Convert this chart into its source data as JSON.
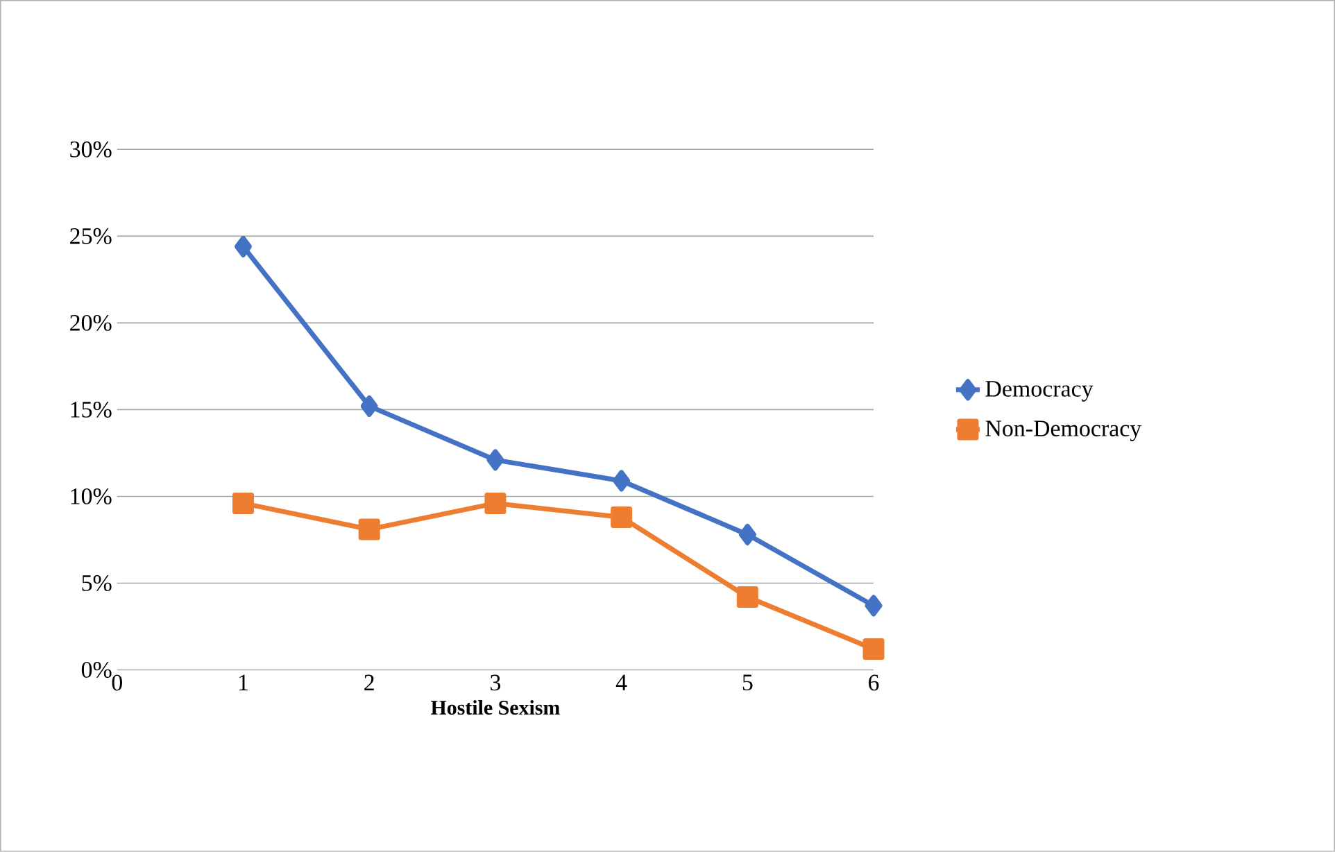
{
  "chart_data": {
    "type": "line",
    "xlabel": "Hostile Sexism",
    "x": [
      1,
      2,
      3,
      4,
      5,
      6
    ],
    "series": [
      {
        "name": "Democracy",
        "color": "#4472c4",
        "marker": "diamond",
        "values": [
          24.4,
          15.2,
          12.1,
          10.9,
          7.8,
          3.7
        ]
      },
      {
        "name": "Non-Democracy",
        "color": "#ed7d31",
        "marker": "square",
        "values": [
          9.6,
          8.1,
          9.6,
          8.8,
          4.2,
          1.2
        ]
      }
    ],
    "xlim": [
      0,
      6
    ],
    "xticks": [
      0,
      1,
      2,
      3,
      4,
      5,
      6
    ],
    "ylim": [
      0,
      30
    ],
    "yticks": [
      {
        "value": 0,
        "label": "0%"
      },
      {
        "value": 5,
        "label": "5%"
      },
      {
        "value": 10,
        "label": "10%"
      },
      {
        "value": 15,
        "label": "15%"
      },
      {
        "value": 20,
        "label": "20%"
      },
      {
        "value": 25,
        "label": "25%"
      },
      {
        "value": 30,
        "label": "30%"
      }
    ],
    "grid": "y",
    "legend": "right",
    "line_style": "solid"
  }
}
